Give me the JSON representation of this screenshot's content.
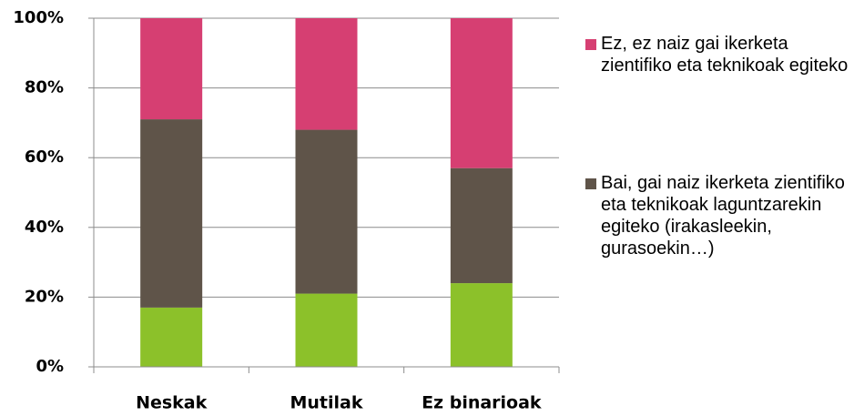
{
  "chart_data": {
    "type": "stacked-bar",
    "categories": [
      "Neskak",
      "Mutilak",
      "Ez binarioak"
    ],
    "series": [
      {
        "color": "#8cc12a",
        "values": [
          17,
          21,
          24
        ]
      },
      {
        "name": "Bai, gai naiz ikerketa zientifiko eta teknikoak laguntzarekin egiteko (irakasleekin, gurasoekin…)",
        "color": "#5f5449",
        "values": [
          54,
          47,
          33
        ]
      },
      {
        "name": "Ez, ez naiz gai ikerketa zientifiko eta teknikoak egiteko",
        "color": "#d63f72",
        "values": [
          29,
          32,
          43
        ]
      }
    ],
    "ylim": [
      0,
      100
    ],
    "yticks": [
      {
        "value": 0,
        "label": "0%"
      },
      {
        "value": 20,
        "label": "20%"
      },
      {
        "value": 40,
        "label": "40%"
      },
      {
        "value": 60,
        "label": "60%"
      },
      {
        "value": 80,
        "label": "80%"
      },
      {
        "value": 100,
        "label": "100%"
      }
    ],
    "grid": true
  }
}
